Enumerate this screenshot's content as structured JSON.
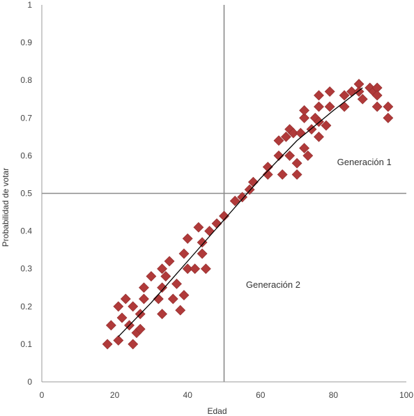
{
  "chart_data": {
    "type": "scatter",
    "xlabel": "Edad",
    "ylabel": "Probabilidad de votar",
    "xlim": [
      0,
      100
    ],
    "ylim": [
      0,
      1
    ],
    "x_ticks": [
      0,
      20,
      40,
      60,
      80,
      100
    ],
    "x_tick_labels": [
      "0",
      "20",
      "40",
      "60",
      "80",
      "100"
    ],
    "y_ticks": [
      0,
      0.1,
      0.2,
      0.3,
      0.4,
      0.5,
      0.6,
      0.7,
      0.8,
      0.9,
      1
    ],
    "y_tick_labels": [
      "0",
      "0.1",
      "0.2",
      "0.3",
      "0.4",
      "0.5",
      "0.6",
      "0.7",
      "0.8",
      "0.9",
      "1"
    ],
    "reference_lines": {
      "vertical_x": 50,
      "horizontal_y": 0.5
    },
    "annotations": [
      {
        "text": "Generación 1",
        "x": 81,
        "y": 0.575
      },
      {
        "text": "Generación 2",
        "x": 56,
        "y": 0.25
      }
    ],
    "marker_color": "#b03a3a",
    "trend_color": "#000000",
    "points": [
      {
        "x": 18,
        "y": 0.1
      },
      {
        "x": 19,
        "y": 0.15
      },
      {
        "x": 21,
        "y": 0.11
      },
      {
        "x": 21,
        "y": 0.2
      },
      {
        "x": 22,
        "y": 0.17
      },
      {
        "x": 23,
        "y": 0.22
      },
      {
        "x": 24,
        "y": 0.15
      },
      {
        "x": 25,
        "y": 0.2
      },
      {
        "x": 25,
        "y": 0.1
      },
      {
        "x": 26,
        "y": 0.13
      },
      {
        "x": 27,
        "y": 0.18
      },
      {
        "x": 27,
        "y": 0.14
      },
      {
        "x": 28,
        "y": 0.22
      },
      {
        "x": 28,
        "y": 0.25
      },
      {
        "x": 30,
        "y": 0.28
      },
      {
        "x": 32,
        "y": 0.22
      },
      {
        "x": 33,
        "y": 0.3
      },
      {
        "x": 33,
        "y": 0.25
      },
      {
        "x": 33,
        "y": 0.18
      },
      {
        "x": 34,
        "y": 0.28
      },
      {
        "x": 35,
        "y": 0.32
      },
      {
        "x": 36,
        "y": 0.22
      },
      {
        "x": 37,
        "y": 0.26
      },
      {
        "x": 38,
        "y": 0.19
      },
      {
        "x": 39,
        "y": 0.23
      },
      {
        "x": 39,
        "y": 0.34
      },
      {
        "x": 40,
        "y": 0.38
      },
      {
        "x": 40,
        "y": 0.3
      },
      {
        "x": 42,
        "y": 0.3
      },
      {
        "x": 43,
        "y": 0.41
      },
      {
        "x": 44,
        "y": 0.37
      },
      {
        "x": 44,
        "y": 0.34
      },
      {
        "x": 45,
        "y": 0.3
      },
      {
        "x": 46,
        "y": 0.4
      },
      {
        "x": 48,
        "y": 0.42
      },
      {
        "x": 50,
        "y": 0.44
      },
      {
        "x": 53,
        "y": 0.48
      },
      {
        "x": 55,
        "y": 0.49
      },
      {
        "x": 57,
        "y": 0.51
      },
      {
        "x": 58,
        "y": 0.53
      },
      {
        "x": 62,
        "y": 0.57
      },
      {
        "x": 62,
        "y": 0.55
      },
      {
        "x": 65,
        "y": 0.6
      },
      {
        "x": 65,
        "y": 0.64
      },
      {
        "x": 66,
        "y": 0.55
      },
      {
        "x": 67,
        "y": 0.65
      },
      {
        "x": 68,
        "y": 0.67
      },
      {
        "x": 68,
        "y": 0.6
      },
      {
        "x": 69,
        "y": 0.66
      },
      {
        "x": 70,
        "y": 0.58
      },
      {
        "x": 70,
        "y": 0.55
      },
      {
        "x": 71,
        "y": 0.66
      },
      {
        "x": 72,
        "y": 0.7
      },
      {
        "x": 72,
        "y": 0.72
      },
      {
        "x": 72,
        "y": 0.62
      },
      {
        "x": 73,
        "y": 0.6
      },
      {
        "x": 74,
        "y": 0.67
      },
      {
        "x": 75,
        "y": 0.7
      },
      {
        "x": 76,
        "y": 0.69
      },
      {
        "x": 76,
        "y": 0.73
      },
      {
        "x": 76,
        "y": 0.76
      },
      {
        "x": 76,
        "y": 0.65
      },
      {
        "x": 78,
        "y": 0.68
      },
      {
        "x": 79,
        "y": 0.73
      },
      {
        "x": 79,
        "y": 0.77
      },
      {
        "x": 83,
        "y": 0.73
      },
      {
        "x": 83,
        "y": 0.76
      },
      {
        "x": 85,
        "y": 0.77
      },
      {
        "x": 87,
        "y": 0.79
      },
      {
        "x": 87,
        "y": 0.77
      },
      {
        "x": 88,
        "y": 0.75
      },
      {
        "x": 90,
        "y": 0.78
      },
      {
        "x": 91,
        "y": 0.77
      },
      {
        "x": 92,
        "y": 0.73
      },
      {
        "x": 92,
        "y": 0.78
      },
      {
        "x": 92,
        "y": 0.76
      },
      {
        "x": 95,
        "y": 0.73
      },
      {
        "x": 95,
        "y": 0.7
      }
    ],
    "trend_line": [
      {
        "x": 21,
        "y": 0.12
      },
      {
        "x": 30,
        "y": 0.21
      },
      {
        "x": 40,
        "y": 0.32
      },
      {
        "x": 50,
        "y": 0.43
      },
      {
        "x": 60,
        "y": 0.54
      },
      {
        "x": 70,
        "y": 0.64
      },
      {
        "x": 80,
        "y": 0.72
      },
      {
        "x": 88,
        "y": 0.78
      }
    ]
  }
}
